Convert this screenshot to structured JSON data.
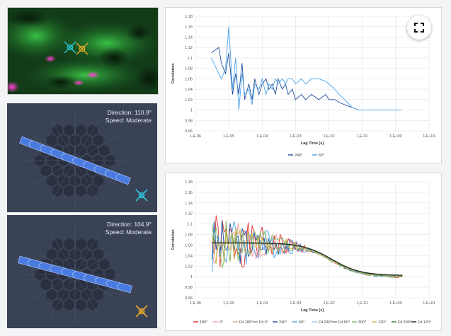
{
  "panels": [
    {
      "direction_text": "Direction: 110.9°",
      "speed_text": "Speed: Moderate",
      "angle": 110.9,
      "badge_color": "#2ec4d6"
    },
    {
      "direction_text": "Direction: 104.9°",
      "speed_text": "Speed: Moderate",
      "angle": 104.9,
      "badge_color": "#e8a92a"
    }
  ],
  "chart_data": [
    {
      "type": "line",
      "xscale": "log",
      "xlabel": "Lag Time [s]",
      "ylabel": "Correlation",
      "xlim": [
        1e-06,
        10.0
      ],
      "ylim": [
        0.96,
        1.18
      ],
      "xticks": [
        "1,E-06",
        "1,E-05",
        "1,E-04",
        "1,E-03",
        "1,E-02",
        "1,E-01",
        "1,E+00",
        "1,E+01"
      ],
      "yticks": [
        "0,96",
        "0,98",
        "1",
        "1,02",
        "1,04",
        "1,06",
        "1,08",
        "1,1",
        "1,12",
        "1,14",
        "1,16",
        "1,18"
      ],
      "legend": "bottom",
      "series": [
        {
          "name": "240°",
          "color": "#1f4e9c",
          "x": [
            3e-06,
            5e-06,
            6e-06,
            8e-06,
            1e-05,
            1.3e-05,
            1.6e-05,
            2e-05,
            2.5e-05,
            3e-05,
            4e-05,
            5e-05,
            6e-05,
            8e-05,
            0.0001,
            0.00013,
            0.00016,
            0.0002,
            0.00025,
            0.0003,
            0.0004,
            0.0005,
            0.0006,
            0.0008,
            0.001,
            0.0015,
            0.002,
            0.003,
            0.005,
            0.008,
            0.01,
            0.015,
            0.02,
            0.03,
            0.05,
            0.08,
            0.1,
            0.2,
            0.5,
            1,
            1.5
          ],
          "y": [
            1.11,
            1.12,
            1.09,
            1.07,
            1.11,
            1.03,
            1.07,
            1.03,
            1.09,
            1.02,
            1.05,
            1.02,
            1.06,
            1.03,
            1.05,
            1.06,
            1.04,
            1.05,
            1.03,
            1.06,
            1.04,
            1.05,
            1.03,
            1.04,
            1.02,
            1.03,
            1.02,
            1.03,
            1.02,
            1.03,
            1.02,
            1.02,
            1.015,
            1.01,
            1.005,
            1.0,
            1.0,
            1.0,
            1.0,
            1.0,
            1.0
          ]
        },
        {
          "name": "60°",
          "color": "#4aa3e8",
          "x": [
            3e-06,
            5e-06,
            6e-06,
            8e-06,
            1e-05,
            1.3e-05,
            1.6e-05,
            2e-05,
            2.5e-05,
            3e-05,
            4e-05,
            5e-05,
            6e-05,
            8e-05,
            0.0001,
            0.00013,
            0.00016,
            0.0002,
            0.00025,
            0.0003,
            0.0004,
            0.0005,
            0.0006,
            0.0008,
            0.001,
            0.0015,
            0.002,
            0.003,
            0.005,
            0.008,
            0.01,
            0.015,
            0.02,
            0.03,
            0.05,
            0.08,
            0.1,
            0.2,
            0.5,
            1,
            1.5
          ],
          "y": [
            1.1,
            1.07,
            1.06,
            1.08,
            1.16,
            1.04,
            1.1,
            1.0,
            1.07,
            1.03,
            1.04,
            1.01,
            1.05,
            1.04,
            1.06,
            1.03,
            1.05,
            1.04,
            1.06,
            1.05,
            1.06,
            1.05,
            1.06,
            1.06,
            1.05,
            1.06,
            1.05,
            1.06,
            1.06,
            1.055,
            1.05,
            1.04,
            1.03,
            1.02,
            1.005,
            1.0,
            1.0,
            1.0,
            1.0,
            1.0,
            1.0
          ]
        }
      ]
    },
    {
      "type": "line",
      "xscale": "log",
      "xlabel": "Lag Time [s]",
      "ylabel": "Correlation",
      "xlim": [
        1e-06,
        10.0
      ],
      "ylim": [
        0.96,
        1.18
      ],
      "xticks": [
        "1,E-06",
        "1,E-05",
        "1,E-04",
        "1,E-03",
        "1,E-02",
        "1,E-01",
        "1,E+00",
        "1,E+01"
      ],
      "yticks": [
        "0,96",
        "0,98",
        "1",
        "1,02",
        "1,04",
        "1,06",
        "1,08",
        "1,1",
        "1,12",
        "1,14",
        "1,16",
        "1,18"
      ],
      "legend": "bottom",
      "series": [
        {
          "name": "180°",
          "color": "#e6302f",
          "kind": "noisy",
          "amp": 0.06,
          "seed": 1
        },
        {
          "name": "0°",
          "color": "#f29a9a",
          "kind": "noisy",
          "amp": 0.05,
          "seed": 2
        },
        {
          "name": "Fit 180°",
          "color": "#c9b18a",
          "kind": "fit"
        },
        {
          "name": "Fit 0°",
          "color": "#888888",
          "kind": "fit"
        },
        {
          "name": "240°",
          "color": "#1f4e9c",
          "kind": "noisy",
          "amp": 0.05,
          "seed": 3
        },
        {
          "name": "60°",
          "color": "#4aa3e8",
          "kind": "noisy",
          "amp": 0.06,
          "seed": 4
        },
        {
          "name": "Fit 240°",
          "color": "#9cc6ea",
          "kind": "fit"
        },
        {
          "name": "Fit 60°",
          "color": "#7a7a7a",
          "kind": "fit"
        },
        {
          "name": "300°",
          "color": "#7fb65a",
          "kind": "noisy",
          "amp": 0.05,
          "seed": 5
        },
        {
          "name": "120°",
          "color": "#c9b64a",
          "kind": "noisy",
          "amp": 0.04,
          "seed": 6
        },
        {
          "name": "Fit 300°",
          "color": "#3f7a3a",
          "kind": "fit"
        },
        {
          "name": "Fit 120°",
          "color": "#222222",
          "kind": "fit"
        }
      ]
    }
  ]
}
